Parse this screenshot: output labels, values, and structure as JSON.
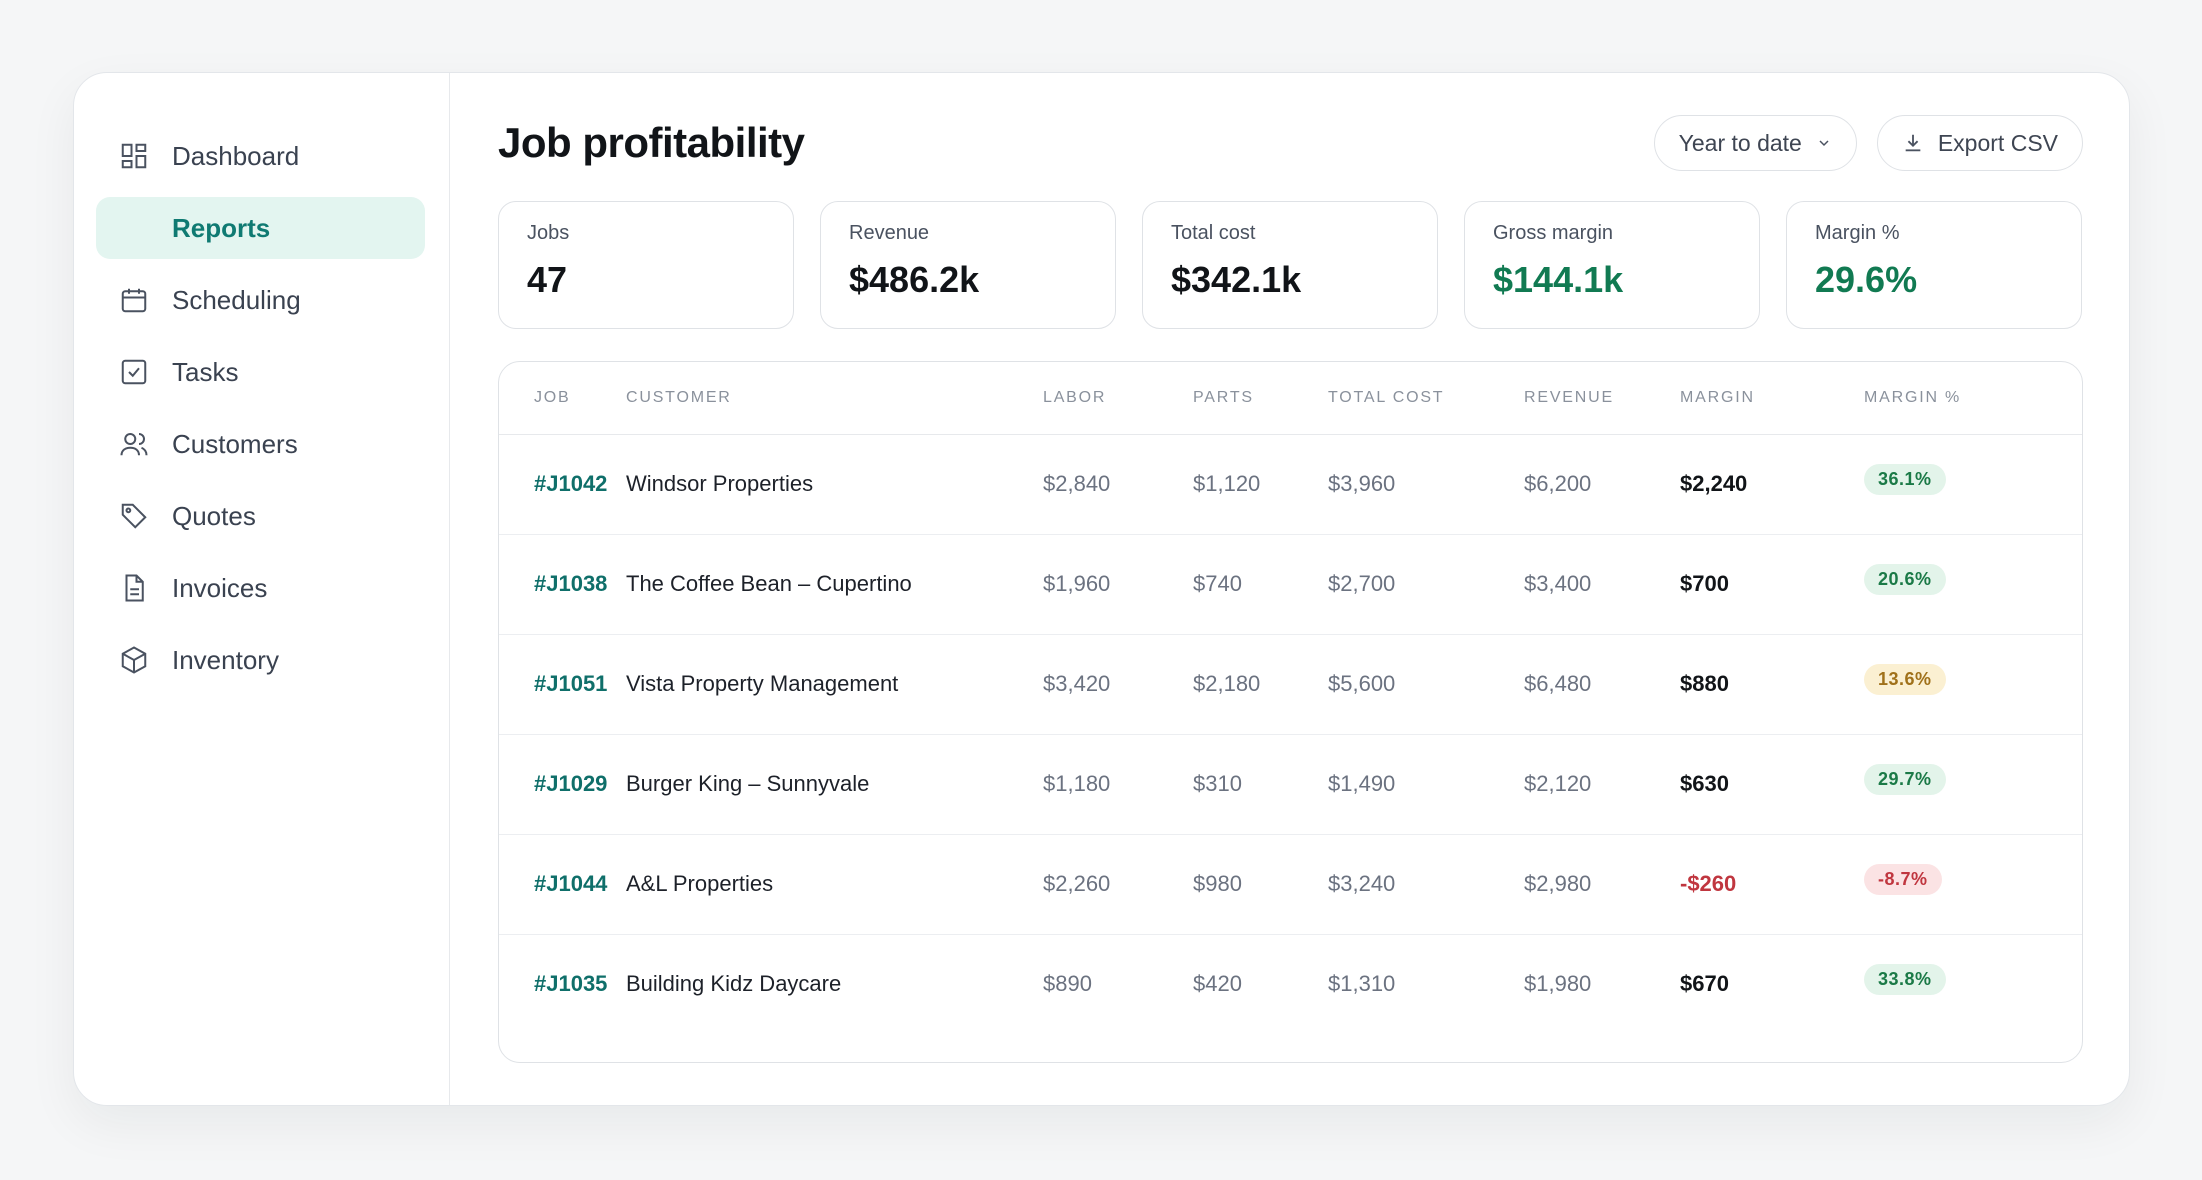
{
  "sidebar": {
    "items": [
      {
        "label": "Dashboard",
        "icon": "dashboard-icon",
        "active": false
      },
      {
        "label": "Reports",
        "icon": "reports-icon",
        "active": true
      },
      {
        "label": "Scheduling",
        "icon": "calendar-icon",
        "active": false
      },
      {
        "label": "Tasks",
        "icon": "checkbox-icon",
        "active": false
      },
      {
        "label": "Customers",
        "icon": "users-icon",
        "active": false
      },
      {
        "label": "Quotes",
        "icon": "tag-icon",
        "active": false
      },
      {
        "label": "Invoices",
        "icon": "document-icon",
        "active": false
      },
      {
        "label": "Inventory",
        "icon": "box-icon",
        "active": false
      }
    ]
  },
  "header": {
    "title": "Job profitability",
    "range_label": "Year to date",
    "export_label": "Export CSV"
  },
  "kpis": [
    {
      "label": "Jobs",
      "value": "47"
    },
    {
      "label": "Revenue",
      "value": "$486.2k"
    },
    {
      "label": "Total cost",
      "value": "$342.1k"
    },
    {
      "label": "Gross margin",
      "value": "$144.1k"
    },
    {
      "label": "Margin %",
      "value": "29.6%"
    }
  ],
  "table": {
    "columns": [
      "JOB",
      "CUSTOMER",
      "LABOR",
      "PARTS",
      "TOTAL COST",
      "REVENUE",
      "MARGIN",
      "MARGIN %"
    ],
    "rows": [
      {
        "job": "#J1042",
        "customer": "Windsor Properties",
        "labor": "$2,840",
        "parts": "$1,120",
        "total": "$3,960",
        "revenue": "$6,200",
        "margin": "$2,240",
        "pct": "36.1%"
      },
      {
        "job": "#J1038",
        "customer": "The Coffee Bean – Cupertino",
        "labor": "$1,960",
        "parts": "$740",
        "total": "$2,700",
        "revenue": "$3,400",
        "margin": "$700",
        "pct": "20.6%"
      },
      {
        "job": "#J1051",
        "customer": "Vista Property Management",
        "labor": "$3,420",
        "parts": "$2,180",
        "total": "$5,600",
        "revenue": "$6,480",
        "margin": "$880",
        "pct": "13.6%"
      },
      {
        "job": "#J1029",
        "customer": "Burger King – Sunnyvale",
        "labor": "$1,180",
        "parts": "$310",
        "total": "$1,490",
        "revenue": "$2,120",
        "margin": "$630",
        "pct": "29.7%"
      },
      {
        "job": "#J1044",
        "customer": "A&L Properties",
        "labor": "$2,260",
        "parts": "$980",
        "total": "$3,240",
        "revenue": "$2,980",
        "margin": "-$260",
        "pct": "-8.7%"
      },
      {
        "job": "#J1035",
        "customer": "Building Kidz Daycare",
        "labor": "$890",
        "parts": "$420",
        "total": "$1,310",
        "revenue": "$1,980",
        "margin": "$670",
        "pct": "33.8%"
      }
    ]
  },
  "colors": {
    "accent": "#0f7a72",
    "positive": "#117a52",
    "negative": "#c0363f",
    "warning": "#a0711a"
  }
}
